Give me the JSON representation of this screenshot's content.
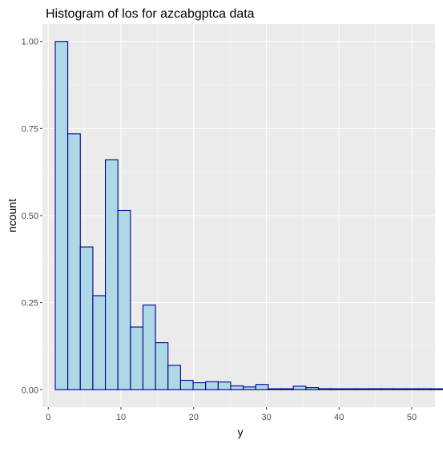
{
  "chart_data": {
    "type": "bar",
    "histogram": true,
    "title": "Histogram of los for azcabgptca data",
    "xlabel": "y",
    "ylabel": "ncount",
    "xlim": [
      -0.8,
      53.2
    ],
    "ylim": [
      -0.05,
      1.05
    ],
    "x_ticks": [
      0,
      10,
      20,
      30,
      40,
      50
    ],
    "y_ticks": [
      0.0,
      0.25,
      0.5,
      0.75,
      1.0
    ],
    "y_tick_labels": [
      "0.00",
      "0.25",
      "0.50",
      "0.75",
      "1.00"
    ],
    "bin_width": 1.724,
    "bin_start": 0.96,
    "values": [
      1.0,
      0.735,
      0.41,
      0.27,
      0.66,
      0.515,
      0.18,
      0.243,
      0.135,
      0.07,
      0.027,
      0.02,
      0.023,
      0.022,
      0.011,
      0.008,
      0.015,
      0.001,
      0.001,
      0.01,
      0.006,
      0.003,
      0.001,
      0.001,
      0.001,
      0.003,
      0.003,
      0.001,
      0.002,
      0.001,
      0.001,
      0.003
    ],
    "grid": true,
    "legend": "none",
    "background_color": "#ebebeb",
    "bar_fill_color": "#add8e6",
    "bar_outline_color": "#00008b"
  }
}
